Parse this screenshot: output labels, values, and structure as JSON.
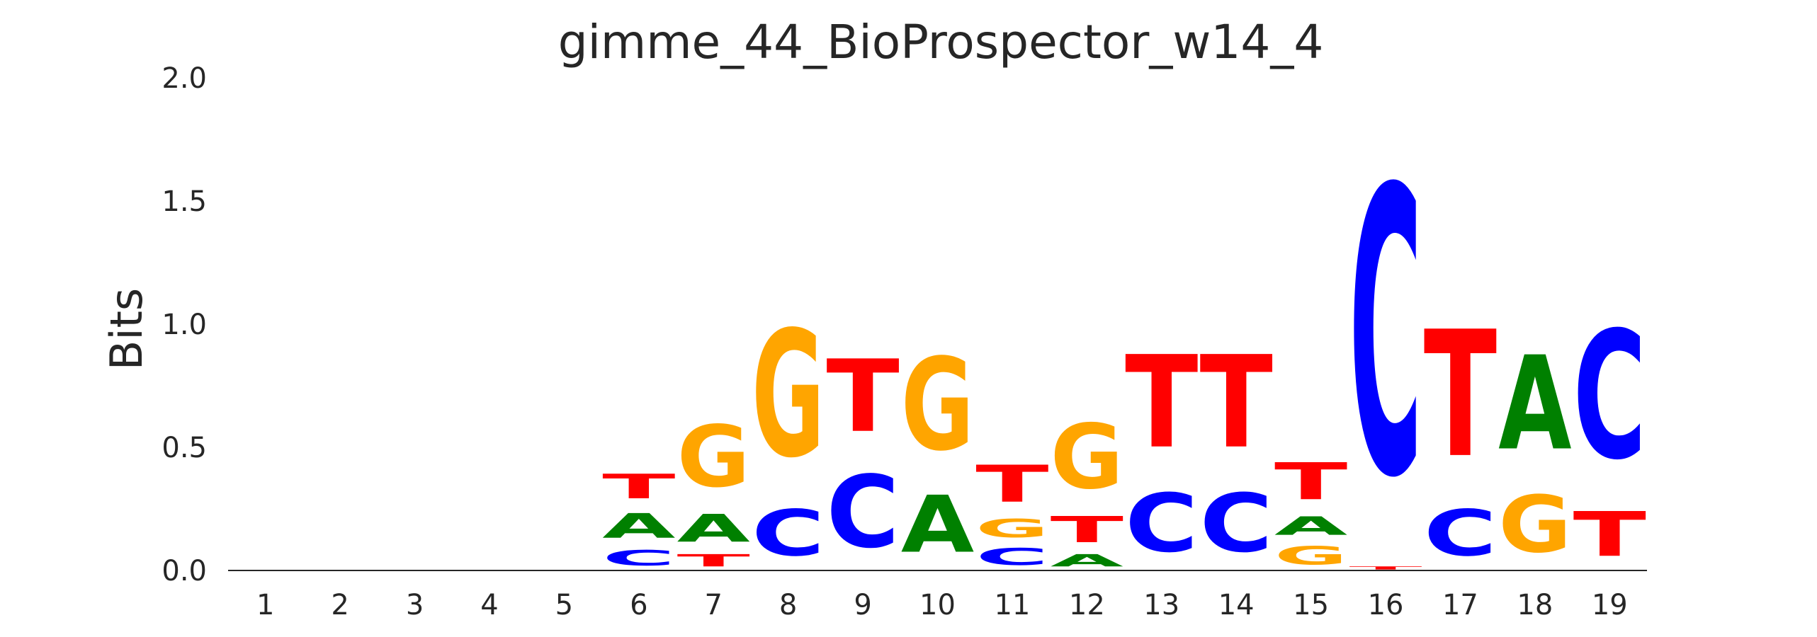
{
  "chart_data": {
    "type": "sequence-logo",
    "title": "gimme_44_BioProspector_w14_4",
    "ylabel": "Bits",
    "xlabel": "",
    "ylim": [
      0,
      2
    ],
    "yticks": [
      "0.0",
      "0.5",
      "1.0",
      "1.5",
      "2.0"
    ],
    "positions": [
      "1",
      "2",
      "3",
      "4",
      "5",
      "6",
      "7",
      "8",
      "9",
      "10",
      "11",
      "12",
      "13",
      "14",
      "15",
      "16",
      "17",
      "18",
      "19"
    ],
    "colors": {
      "A": "#008000",
      "C": "#0000ff",
      "G": "#ffa500",
      "T": "#ff0000"
    },
    "stacks": [
      [],
      [],
      [],
      [],
      [],
      [
        [
          "C",
          0.1
        ],
        [
          "A",
          0.16
        ],
        [
          "T",
          0.16
        ]
      ],
      [
        [
          "T",
          0.08
        ],
        [
          "A",
          0.18
        ],
        [
          "G",
          0.4
        ]
      ],
      [
        [
          "C",
          0.3
        ],
        [
          "G",
          0.82
        ]
      ],
      [
        [
          "C",
          0.47
        ],
        [
          "T",
          0.47
        ]
      ],
      [
        [
          "A",
          0.37
        ],
        [
          "G",
          0.6
        ]
      ],
      [
        [
          "C",
          0.11
        ],
        [
          "G",
          0.12
        ],
        [
          "T",
          0.24
        ]
      ],
      [
        [
          "A",
          0.08
        ],
        [
          "T",
          0.17
        ],
        [
          "G",
          0.42
        ]
      ],
      [
        [
          "C",
          0.38
        ],
        [
          "T",
          0.6
        ]
      ],
      [
        [
          "C",
          0.38
        ],
        [
          "T",
          0.6
        ]
      ],
      [
        [
          "G",
          0.12
        ],
        [
          "A",
          0.12
        ],
        [
          "T",
          0.24
        ]
      ],
      [
        [
          "T",
          0.02
        ],
        [
          "C",
          1.86
        ]
      ],
      [
        [
          "C",
          0.3
        ],
        [
          "T",
          0.82
        ]
      ],
      [
        [
          "G",
          0.37
        ],
        [
          "A",
          0.61
        ]
      ],
      [
        [
          "T",
          0.29
        ],
        [
          "C",
          0.83
        ]
      ]
    ]
  }
}
